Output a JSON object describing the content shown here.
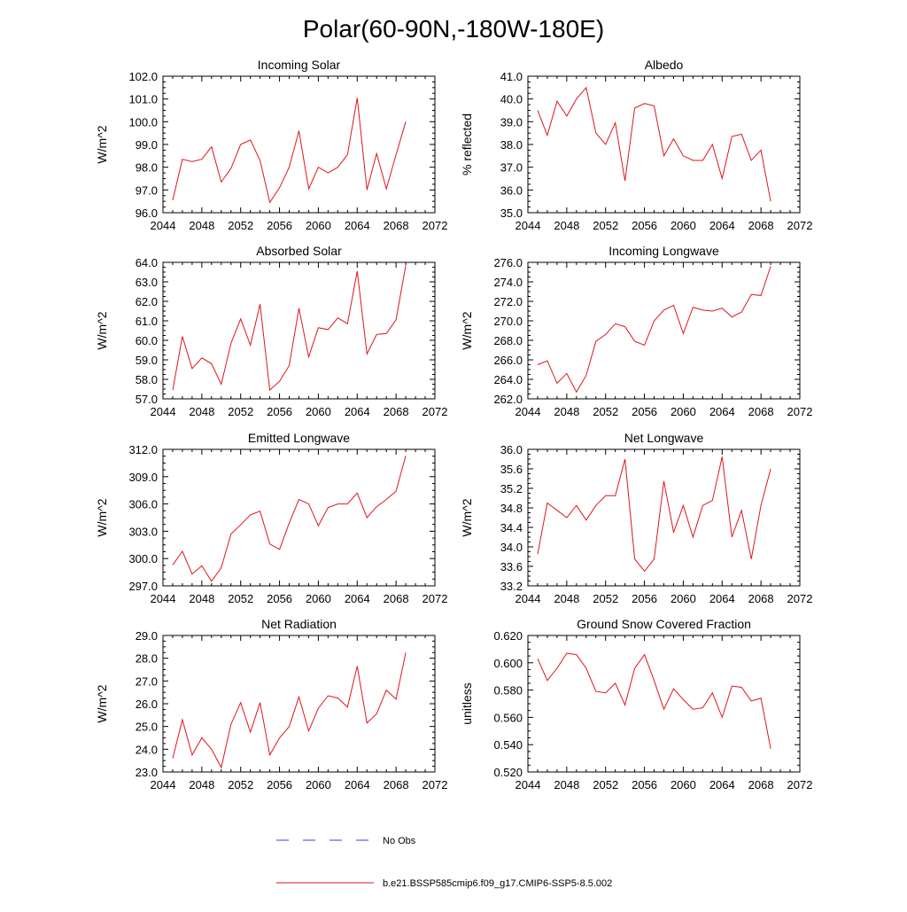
{
  "title": "Polar(60-90N,-180W-180E)",
  "colors": {
    "model": "#e0141b",
    "obs": "#3344cc",
    "axis": "#000000"
  },
  "legend": {
    "obs_label": "No Obs",
    "model_label": "b.e21.BSSP585cmip6.f09_g17.CMIP6-SSP5-8.5.002"
  },
  "chart_data": [
    {
      "type": "line",
      "title": "Incoming Solar",
      "ylabel": "W/m^2",
      "xlim": [
        2044,
        2072
      ],
      "ylim": [
        96,
        102
      ],
      "xticks": [
        2044,
        2048,
        2052,
        2056,
        2060,
        2064,
        2068,
        2072
      ],
      "yticks": [
        "96.0",
        "97.0",
        "98.0",
        "99.0",
        "100.0",
        "101.0",
        "102.0"
      ],
      "x": [
        2045,
        2046,
        2047,
        2048,
        2049,
        2050,
        2051,
        2052,
        2053,
        2054,
        2055,
        2056,
        2057,
        2058,
        2059,
        2060,
        2061,
        2062,
        2063,
        2064,
        2065,
        2066,
        2067,
        2068,
        2069
      ],
      "values": [
        96.55,
        98.35,
        98.25,
        98.35,
        98.9,
        97.35,
        97.95,
        99.0,
        99.2,
        98.3,
        96.45,
        97.1,
        98.0,
        99.6,
        97.05,
        98.0,
        97.75,
        98.0,
        98.55,
        101.05,
        97.0,
        98.6,
        97.05,
        98.55,
        100.0
      ]
    },
    {
      "type": "line",
      "title": "Albedo",
      "ylabel": "% reflected",
      "xlim": [
        2044,
        2072
      ],
      "ylim": [
        35,
        41
      ],
      "xticks": [
        2044,
        2048,
        2052,
        2056,
        2060,
        2064,
        2068,
        2072
      ],
      "yticks": [
        "35.0",
        "36.0",
        "37.0",
        "38.0",
        "39.0",
        "40.0",
        "41.0"
      ],
      "x": [
        2045,
        2046,
        2047,
        2048,
        2049,
        2050,
        2051,
        2052,
        2053,
        2054,
        2055,
        2056,
        2057,
        2058,
        2059,
        2060,
        2061,
        2062,
        2063,
        2064,
        2065,
        2066,
        2067,
        2068,
        2069
      ],
      "values": [
        39.5,
        38.4,
        39.9,
        39.25,
        40.0,
        40.5,
        38.5,
        38.0,
        38.95,
        36.4,
        39.6,
        39.8,
        39.7,
        37.5,
        38.25,
        37.5,
        37.3,
        37.3,
        38.0,
        36.5,
        38.35,
        38.45,
        37.3,
        37.75,
        35.5
      ]
    },
    {
      "type": "line",
      "title": "Absorbed Solar",
      "ylabel": "W/m^2",
      "xlim": [
        2044,
        2072
      ],
      "ylim": [
        57,
        64
      ],
      "xticks": [
        2044,
        2048,
        2052,
        2056,
        2060,
        2064,
        2068,
        2072
      ],
      "yticks": [
        "57.0",
        "58.0",
        "59.0",
        "60.0",
        "61.0",
        "62.0",
        "63.0",
        "64.0"
      ],
      "x": [
        2045,
        2046,
        2047,
        2048,
        2049,
        2050,
        2051,
        2052,
        2053,
        2054,
        2055,
        2056,
        2057,
        2058,
        2059,
        2060,
        2061,
        2062,
        2063,
        2064,
        2065,
        2066,
        2067,
        2068,
        2069
      ],
      "values": [
        57.45,
        60.2,
        58.55,
        59.1,
        58.8,
        57.75,
        59.85,
        61.1,
        59.75,
        61.85,
        57.45,
        57.9,
        58.7,
        61.65,
        59.15,
        60.65,
        60.55,
        61.15,
        60.85,
        63.55,
        59.3,
        60.3,
        60.35,
        61.05,
        63.85
      ]
    },
    {
      "type": "line",
      "title": "Incoming Longwave",
      "ylabel": "W/m^2",
      "xlim": [
        2044,
        2072
      ],
      "ylim": [
        262,
        276
      ],
      "xticks": [
        2044,
        2048,
        2052,
        2056,
        2060,
        2064,
        2068,
        2072
      ],
      "yticks": [
        "262.0",
        "264.0",
        "266.0",
        "268.0",
        "270.0",
        "272.0",
        "274.0",
        "276.0"
      ],
      "x": [
        2045,
        2046,
        2047,
        2048,
        2049,
        2050,
        2051,
        2052,
        2053,
        2054,
        2055,
        2056,
        2057,
        2058,
        2059,
        2060,
        2061,
        2062,
        2063,
        2064,
        2065,
        2066,
        2067,
        2068,
        2069
      ],
      "values": [
        265.5,
        265.9,
        263.6,
        264.6,
        262.7,
        264.4,
        267.9,
        268.6,
        269.7,
        269.4,
        267.9,
        267.5,
        270.0,
        271.1,
        271.6,
        268.7,
        271.4,
        271.1,
        271.0,
        271.3,
        270.4,
        270.9,
        272.7,
        272.6,
        275.6
      ]
    },
    {
      "type": "line",
      "title": "Emitted Longwave",
      "ylabel": "W/m^2",
      "xlim": [
        2044,
        2072
      ],
      "ylim": [
        297,
        312
      ],
      "xticks": [
        2044,
        2048,
        2052,
        2056,
        2060,
        2064,
        2068,
        2072
      ],
      "yticks": [
        "297.0",
        "300.0",
        "303.0",
        "306.0",
        "309.0",
        "312.0"
      ],
      "x": [
        2045,
        2046,
        2047,
        2048,
        2049,
        2050,
        2051,
        2052,
        2053,
        2054,
        2055,
        2056,
        2057,
        2058,
        2059,
        2060,
        2061,
        2062,
        2063,
        2064,
        2065,
        2066,
        2067,
        2068,
        2069
      ],
      "values": [
        299.3,
        300.8,
        298.3,
        299.2,
        297.5,
        299.0,
        302.7,
        303.7,
        304.8,
        305.2,
        301.6,
        301.0,
        303.9,
        306.5,
        306.0,
        303.6,
        305.6,
        306.0,
        306.0,
        307.2,
        304.5,
        305.7,
        306.5,
        307.4,
        311.3
      ]
    },
    {
      "type": "line",
      "title": "Net Longwave",
      "ylabel": "W/m^2",
      "xlim": [
        2044,
        2072
      ],
      "ylim": [
        33.2,
        36.0
      ],
      "xticks": [
        2044,
        2048,
        2052,
        2056,
        2060,
        2064,
        2068,
        2072
      ],
      "yticks": [
        "33.2",
        "33.6",
        "34.0",
        "34.4",
        "34.8",
        "35.2",
        "35.6",
        "36.0"
      ],
      "x": [
        2045,
        2046,
        2047,
        2048,
        2049,
        2050,
        2051,
        2052,
        2053,
        2054,
        2055,
        2056,
        2057,
        2058,
        2059,
        2060,
        2061,
        2062,
        2063,
        2064,
        2065,
        2066,
        2067,
        2068,
        2069
      ],
      "values": [
        33.85,
        34.9,
        34.75,
        34.6,
        34.85,
        34.55,
        34.85,
        35.05,
        35.05,
        35.8,
        33.75,
        33.5,
        33.75,
        35.35,
        34.3,
        34.85,
        34.2,
        34.85,
        34.95,
        35.85,
        34.2,
        34.75,
        33.75,
        34.85,
        35.6
      ]
    },
    {
      "type": "line",
      "title": "Net Radiation",
      "ylabel": "W/m^2",
      "xlim": [
        2044,
        2072
      ],
      "ylim": [
        23,
        29
      ],
      "xticks": [
        2044,
        2048,
        2052,
        2056,
        2060,
        2064,
        2068,
        2072
      ],
      "yticks": [
        "23.0",
        "24.0",
        "25.0",
        "26.0",
        "27.0",
        "28.0",
        "29.0"
      ],
      "x": [
        2045,
        2046,
        2047,
        2048,
        2049,
        2050,
        2051,
        2052,
        2053,
        2054,
        2055,
        2056,
        2057,
        2058,
        2059,
        2060,
        2061,
        2062,
        2063,
        2064,
        2065,
        2066,
        2067,
        2068,
        2069
      ],
      "values": [
        23.6,
        25.3,
        23.75,
        24.5,
        24.0,
        23.2,
        25.1,
        26.05,
        24.75,
        26.05,
        23.75,
        24.5,
        25.0,
        26.3,
        24.8,
        25.8,
        26.35,
        26.25,
        25.85,
        27.65,
        25.15,
        25.55,
        26.6,
        26.2,
        28.25
      ]
    },
    {
      "type": "line",
      "title": "Ground Snow Covered Fraction",
      "ylabel": "unitless",
      "xlim": [
        2044,
        2072
      ],
      "ylim": [
        0.52,
        0.62
      ],
      "xticks": [
        2044,
        2048,
        2052,
        2056,
        2060,
        2064,
        2068,
        2072
      ],
      "yticks": [
        "0.520",
        "0.540",
        "0.560",
        "0.580",
        "0.600",
        "0.620"
      ],
      "x": [
        2045,
        2046,
        2047,
        2048,
        2049,
        2050,
        2051,
        2052,
        2053,
        2054,
        2055,
        2056,
        2057,
        2058,
        2059,
        2060,
        2061,
        2062,
        2063,
        2064,
        2065,
        2066,
        2067,
        2068,
        2069
      ],
      "values": [
        0.603,
        0.587,
        0.596,
        0.607,
        0.606,
        0.596,
        0.579,
        0.578,
        0.585,
        0.569,
        0.596,
        0.606,
        0.587,
        0.566,
        0.581,
        0.573,
        0.566,
        0.567,
        0.578,
        0.56,
        0.583,
        0.582,
        0.572,
        0.574,
        0.537
      ]
    }
  ]
}
